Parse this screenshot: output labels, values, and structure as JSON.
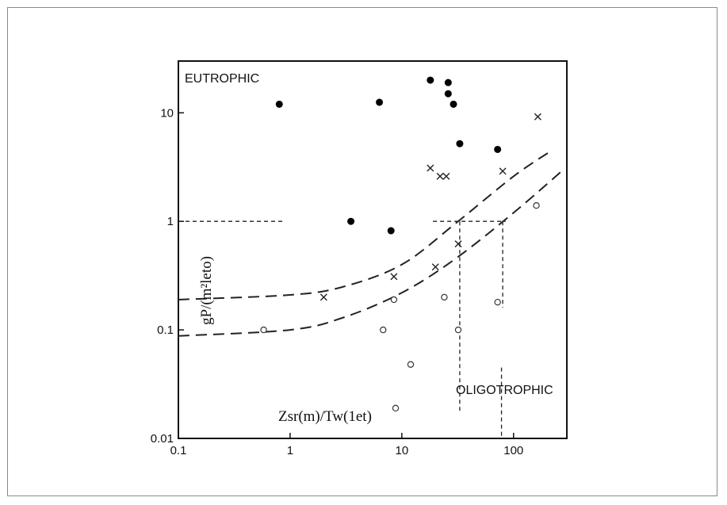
{
  "chart_data": {
    "type": "scatter",
    "x_scale": "log",
    "y_scale": "log",
    "xlim": [
      0.1,
      300
    ],
    "ylim": [
      0.01,
      30
    ],
    "x_ticks": [
      {
        "value": 0.1,
        "label": "0.1"
      },
      {
        "value": 1,
        "label": "1"
      },
      {
        "value": 10,
        "label": "10"
      },
      {
        "value": 100,
        "label": "100"
      }
    ],
    "y_ticks": [
      {
        "value": 0.01,
        "label": "0.01"
      },
      {
        "value": 0.1,
        "label": "0.1"
      },
      {
        "value": 1,
        "label": "1"
      },
      {
        "value": 10,
        "label": "10"
      }
    ],
    "xlabel": "Zsr(m)/Tw(1et)",
    "ylabel": "gP/(m²leto)",
    "annotations": {
      "eutrophic": "EUTROPHIC",
      "oligotrophic": "OLIGOTROPHIC"
    },
    "series": [
      {
        "marker": "filled-circle",
        "points": [
          [
            0.8,
            12
          ],
          [
            6.3,
            12.5
          ],
          [
            18,
            20
          ],
          [
            26,
            19
          ],
          [
            26,
            15
          ],
          [
            29,
            12
          ],
          [
            33,
            5.2
          ],
          [
            72,
            4.6
          ],
          [
            3.5,
            1.0
          ],
          [
            8,
            0.82
          ]
        ]
      },
      {
        "marker": "x",
        "points": [
          [
            2,
            0.2
          ],
          [
            8.5,
            0.31
          ],
          [
            20,
            0.38
          ],
          [
            32,
            0.62
          ],
          [
            18,
            3.1
          ],
          [
            22,
            2.6
          ],
          [
            25,
            2.6
          ],
          [
            80,
            2.9
          ],
          [
            165,
            9.2
          ]
        ]
      },
      {
        "marker": "open-circle",
        "points": [
          [
            0.58,
            0.1
          ],
          [
            6.8,
            0.1
          ],
          [
            8.5,
            0.19
          ],
          [
            12,
            0.048
          ],
          [
            8.8,
            0.019
          ],
          [
            24,
            0.2
          ],
          [
            32,
            0.1
          ],
          [
            72,
            0.18
          ],
          [
            160,
            1.4
          ]
        ]
      }
    ],
    "boundary_curves": [
      {
        "style": "dashed",
        "points": [
          [
            0.1,
            0.19
          ],
          [
            1,
            0.21
          ],
          [
            3,
            0.25
          ],
          [
            10,
            0.4
          ],
          [
            30,
            0.95
          ],
          [
            100,
            2.6
          ],
          [
            220,
            4.5
          ]
        ]
      },
      {
        "style": "dashed",
        "points": [
          [
            0.1,
            0.088
          ],
          [
            1,
            0.1
          ],
          [
            3,
            0.13
          ],
          [
            10,
            0.22
          ],
          [
            30,
            0.45
          ],
          [
            100,
            1.2
          ],
          [
            280,
            3.0
          ]
        ]
      }
    ],
    "reference_lines": [
      {
        "style": "dashed",
        "points": [
          [
            0.1,
            1
          ],
          [
            0.9,
            1
          ]
        ]
      },
      {
        "style": "dashed",
        "points": [
          [
            19,
            1
          ],
          [
            85,
            1
          ]
        ]
      },
      {
        "style": "dashed",
        "points": [
          [
            33,
            1
          ],
          [
            33,
            0.018
          ]
        ]
      },
      {
        "style": "dashed",
        "points": [
          [
            80,
            1
          ],
          [
            80,
            0.16
          ]
        ]
      },
      {
        "style": "dashed",
        "points": [
          [
            78,
            0.045
          ],
          [
            78,
            0.01
          ]
        ]
      }
    ],
    "grid": false
  }
}
